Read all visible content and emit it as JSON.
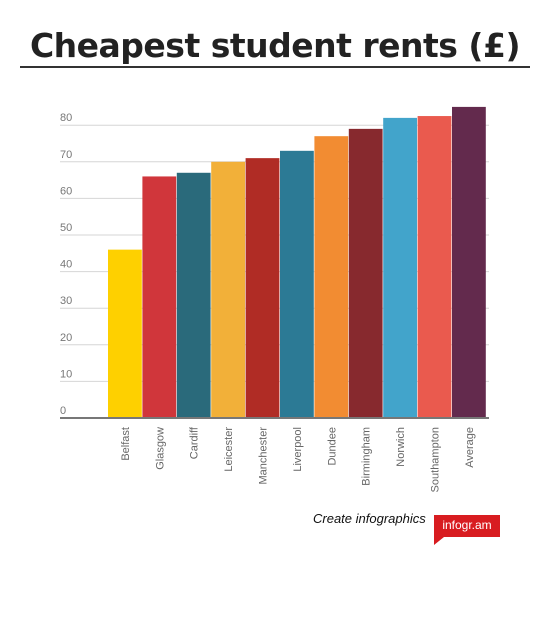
{
  "header": {
    "title": "Cheapest student rents (£)"
  },
  "chart_data": {
    "type": "bar",
    "title": "Cheapest student rents (£)",
    "categories": [
      "Belfast",
      "Glasgow",
      "Cardiff",
      "Leicester",
      "Manchester",
      "Liverpool",
      "Dundee",
      "Birmingham",
      "Norwich",
      "Southampton",
      "Average"
    ],
    "values": [
      46,
      66,
      67,
      70,
      71,
      73,
      77,
      79,
      82,
      82.5,
      85
    ],
    "colors": [
      "#fed000",
      "#d0363b",
      "#2a6a7b",
      "#f2b039",
      "#b02c25",
      "#2c7a95",
      "#f28c32",
      "#87292e",
      "#42a4cb",
      "#ea5a4e",
      "#632a4d"
    ],
    "yticks": [
      0,
      10,
      20,
      30,
      40,
      50,
      60,
      70,
      80
    ],
    "ylim": [
      0,
      85
    ],
    "xlabel": "",
    "ylabel": "",
    "grid": true,
    "legend": "none"
  },
  "footer": {
    "cta": "Create infographics",
    "brand": "infogr.am"
  }
}
